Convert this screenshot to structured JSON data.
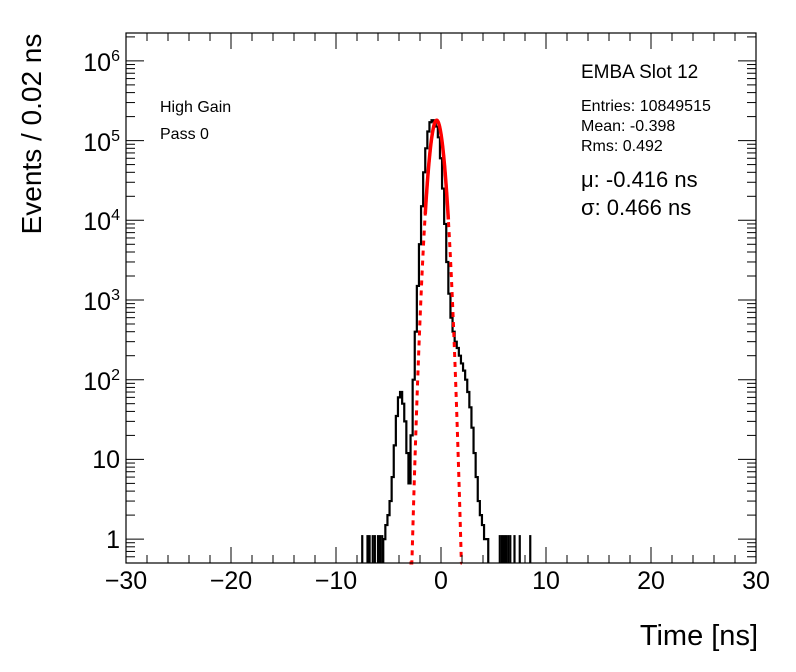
{
  "chart_data": {
    "type": "line",
    "title": "EMBA Slot 12",
    "xlabel": "Time [ns]",
    "ylabel": "Events / 0.02 ns",
    "xlim": [
      -30,
      30
    ],
    "ylim_log10": [
      -0.3,
      6.35
    ],
    "yscale": "log",
    "grid": false,
    "x_tick_labels": [
      "−30",
      "−20",
      "−10",
      "0",
      "10",
      "20",
      "30"
    ],
    "x_tick_values": [
      -30,
      -20,
      -10,
      0,
      10,
      20,
      30
    ],
    "y_tick_values": [
      1,
      10,
      100,
      1000,
      10000,
      100000,
      1000000
    ],
    "y_tick_labels": [
      {
        "base": "1",
        "exp": ""
      },
      {
        "base": "10",
        "exp": ""
      },
      {
        "base": "10",
        "exp": "2"
      },
      {
        "base": "10",
        "exp": "3"
      },
      {
        "base": "10",
        "exp": "4"
      },
      {
        "base": "10",
        "exp": "5"
      },
      {
        "base": "10",
        "exp": "6"
      }
    ],
    "annotations": {
      "gain": "High Gain",
      "pass": "Pass 0"
    },
    "stats": {
      "entries": "Entries: 10849515",
      "mean": "Mean: -0.398",
      "rms": "Rms: 0.492",
      "mu": "μ: -0.416 ns",
      "sigma": "σ: 0.466 ns"
    },
    "series": [
      {
        "style": "histogram",
        "color": "#000000",
        "x": [
          -5.4,
          -5.2,
          -5.0,
          -4.8,
          -4.6,
          -4.4,
          -4.2,
          -4.0,
          -3.8,
          -3.6,
          -3.4,
          -3.2,
          -3.0,
          -2.8,
          -2.6,
          -2.4,
          -2.2,
          -2.0,
          -1.8,
          -1.6,
          -1.4,
          -1.2,
          -1.0,
          -0.8,
          -0.6,
          -0.4,
          -0.2,
          0.0,
          0.2,
          0.4,
          0.6,
          0.8,
          1.0,
          1.2,
          1.4,
          1.6,
          1.8,
          2.0,
          2.2,
          2.4,
          2.6,
          2.8,
          3.0,
          3.2,
          3.4,
          3.6,
          3.8,
          4.0,
          4.2,
          4.4
        ],
        "y": [
          1,
          1.5,
          2,
          3,
          6,
          15,
          35,
          60,
          70,
          50,
          30,
          12,
          5,
          20,
          100,
          400,
          1500,
          5000,
          15000,
          40000,
          80000,
          130000,
          170000,
          180000,
          175000,
          150000,
          110000,
          60000,
          25000,
          9000,
          3000,
          1200,
          600,
          400,
          300,
          250,
          200,
          160,
          130,
          100,
          70,
          45,
          25,
          12,
          6,
          3,
          2,
          1.5,
          1,
          1
        ]
      },
      {
        "style": "fit",
        "color": "#ff0000",
        "mu": -0.416,
        "sigma": 0.466,
        "amplitude": 180000,
        "solid_range": [
          -1.5,
          0.7
        ],
        "dashed_range": [
          -3.0,
          2.0
        ]
      }
    ],
    "sparse_entries_x": [
      -7.5,
      -7.0,
      -6.8,
      -6.5,
      -6.3,
      -6.0,
      -5.8,
      -5.6,
      5.6,
      5.8,
      6.0,
      6.2,
      6.4,
      6.6,
      7.0,
      7.5,
      8.5
    ]
  }
}
